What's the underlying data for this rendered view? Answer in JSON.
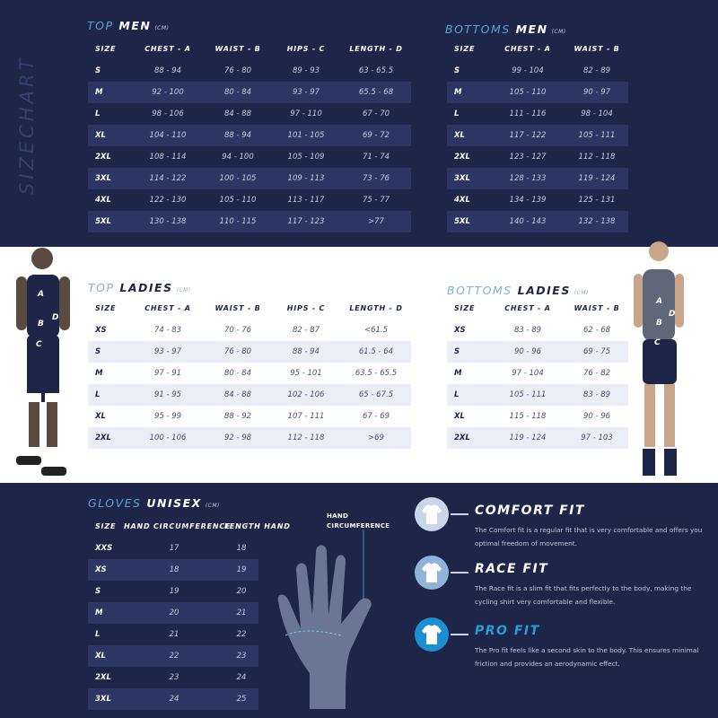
{
  "side_label": "SIZECHART",
  "unit": "(CM)",
  "top_men": {
    "title_a": "TOP",
    "title_b": "MEN",
    "headers": [
      "SIZE",
      "CHEST - A",
      "WAIST - B",
      "HIPS - C",
      "LENGTH  - D"
    ],
    "rows": [
      [
        "S",
        "88 - 94",
        "76 - 80",
        "89 - 93",
        "63 - 65.5"
      ],
      [
        "M",
        "92 - 100",
        "80 - 84",
        "93 - 97",
        "65.5 - 68"
      ],
      [
        "L",
        "98 - 106",
        "84 - 88",
        "97 - 110",
        "67 - 70"
      ],
      [
        "XL",
        "104 - 110",
        "88 - 94",
        "101 - 105",
        "69 - 72"
      ],
      [
        "2XL",
        "108 - 114",
        "94 - 100",
        "105 - 109",
        "71 - 74"
      ],
      [
        "3XL",
        "114 - 122",
        "100 - 105",
        "109 - 113",
        "73 - 76"
      ],
      [
        "4XL",
        "122 - 130",
        "105 - 110",
        "113 - 117",
        "75 - 77"
      ],
      [
        "5XL",
        "130 - 138",
        "110 - 115",
        "117 - 123",
        ">77"
      ]
    ]
  },
  "bottoms_men": {
    "title_a": "BOTTOMS",
    "title_b": "MEN",
    "headers": [
      "SIZE",
      "CHEST - A",
      "WAIST - B"
    ],
    "rows": [
      [
        "S",
        "99 - 104",
        "82 - 89"
      ],
      [
        "M",
        "105 - 110",
        "90 - 97"
      ],
      [
        "L",
        "111 - 116",
        "98 - 104"
      ],
      [
        "XL",
        "117 - 122",
        "105 - 111"
      ],
      [
        "2XL",
        "123 - 127",
        "112 - 118"
      ],
      [
        "3XL",
        "128 - 133",
        "119 - 124"
      ],
      [
        "4XL",
        "134 - 139",
        "125 - 131"
      ],
      [
        "5XL",
        "140 - 143",
        "132 - 138"
      ]
    ]
  },
  "top_ladies": {
    "title_a": "TOP",
    "title_b": "LADIES",
    "headers": [
      "SIZE",
      "CHEST - A",
      "WAIST - B",
      "HIPS - C",
      "LENGTH  - D"
    ],
    "rows": [
      [
        "XS",
        "74 - 83",
        "70 - 76",
        "82 - 87",
        "<61.5"
      ],
      [
        "S",
        "93 - 97",
        "76 - 80",
        "88 - 94",
        "61.5 - 64"
      ],
      [
        "M",
        "97 - 91",
        "80 - 84",
        "95 - 101",
        "63.5 - 65.5"
      ],
      [
        "L",
        "91 - 95",
        "84 - 88",
        "102 - 106",
        "65 - 67.5"
      ],
      [
        "XL",
        "95 - 99",
        "88 - 92",
        "107 - 111",
        "67 - 69"
      ],
      [
        "2XL",
        "100 - 106",
        "92 - 98",
        "112 - 118",
        ">69"
      ]
    ]
  },
  "bottoms_ladies": {
    "title_a": "BOTTOMS",
    "title_b": "LADIES",
    "headers": [
      "SIZE",
      "CHEST - A",
      "WAIST - B"
    ],
    "rows": [
      [
        "XS",
        "83 - 89",
        "62 - 68"
      ],
      [
        "S",
        "90 - 96",
        "69 - 75"
      ],
      [
        "M",
        "97 - 104",
        "76 - 82"
      ],
      [
        "L",
        "105 - 111",
        "83 - 89"
      ],
      [
        "XL",
        "115 - 118",
        "90 - 96"
      ],
      [
        "2XL",
        "119 - 124",
        "97 - 103"
      ]
    ]
  },
  "gloves": {
    "title_a": "GLOVES",
    "title_b": "UNISEX",
    "headers": [
      "SIZE",
      "HAND CIRCUMFERENCE",
      "LENGTH HAND"
    ],
    "rows": [
      [
        "XXS",
        "17",
        "18"
      ],
      [
        "XS",
        "18",
        "19"
      ],
      [
        "S",
        "19",
        "20"
      ],
      [
        "M",
        "20",
        "21"
      ],
      [
        "L",
        "21",
        "22"
      ],
      [
        "XL",
        "22",
        "23"
      ],
      [
        "2XL",
        "23",
        "24"
      ],
      [
        "3XL",
        "24",
        "25"
      ]
    ],
    "hand_label": "HAND CIRCUMFERENCE"
  },
  "measure_labels": [
    "A",
    "B",
    "C",
    "D"
  ],
  "fits": [
    {
      "title": "COMFORT FIT",
      "desc": "The Comfort fit is a regular fit that is very comfortable and offers you optimal freedom of movement.",
      "color": "#c9d6ea",
      "title_color": "#ffffff"
    },
    {
      "title": "RACE FIT",
      "desc": "The Race fit is a slim fit that fits perfectly to the body, making the cycling shirt very comfortable and flexible.",
      "color": "#8fb4d8",
      "title_color": "#ffffff"
    },
    {
      "title": "PRO FIT",
      "desc": "The Pro fit feels like a second skin to the body. This ensures minimal friction and provides an aerodynamic effect.",
      "color": "#1b8fcf",
      "title_color": "#2a9fdc"
    }
  ]
}
